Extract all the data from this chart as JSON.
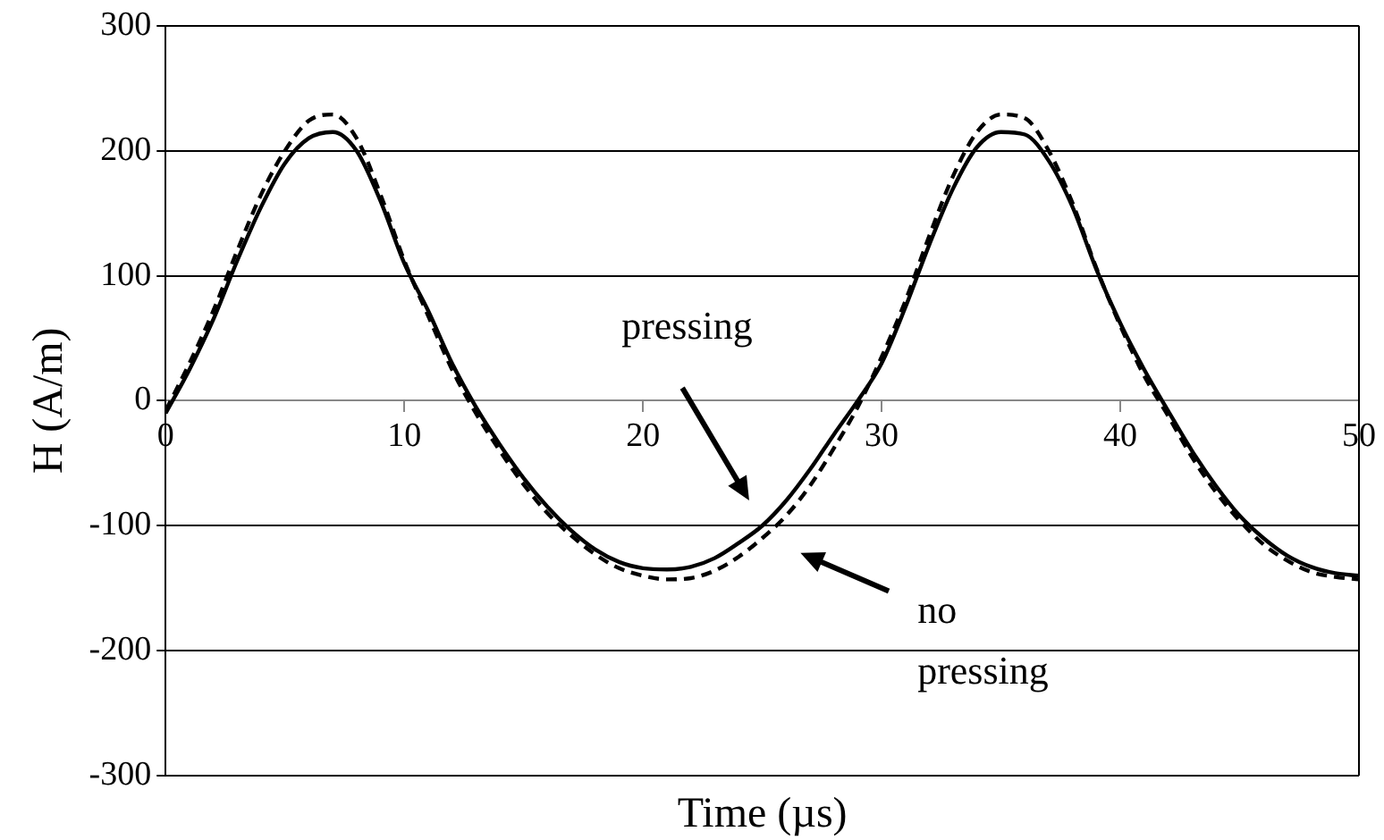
{
  "chart_data": {
    "type": "line",
    "xlabel": "Time (µs)",
    "ylabel": "H (A/m)",
    "x": [
      0,
      1,
      2,
      3,
      4,
      5,
      6,
      7,
      8,
      9,
      10,
      11,
      12,
      13,
      14,
      15,
      16,
      17,
      18,
      19,
      20,
      21,
      22,
      23,
      24,
      25,
      26,
      27,
      28,
      29,
      30,
      31,
      32,
      33,
      34,
      35,
      36,
      37,
      38,
      39,
      40,
      41,
      42,
      43,
      44,
      45,
      46,
      47,
      48,
      49,
      50
    ],
    "series": [
      {
        "color": "#000000",
        "line_style": "solid",
        "values": [
          -10,
          25,
          65,
          112,
          155,
          190,
          210,
          215,
          200,
          160,
          110,
          72,
          30,
          -5,
          -35,
          -62,
          -85,
          -104,
          -119,
          -129,
          -134,
          -135,
          -133,
          -126,
          -114,
          -100,
          -80,
          -55,
          -27,
          0,
          30,
          75,
          125,
          170,
          203,
          215,
          213,
          192,
          155,
          105,
          62,
          25,
          -8,
          -40,
          -68,
          -92,
          -110,
          -124,
          -133,
          -138,
          -140
        ]
      },
      {
        "color": "#000000",
        "line_style": "dashed",
        "values": [
          -8,
          30,
          72,
          120,
          165,
          200,
          224,
          229,
          210,
          165,
          112,
          68,
          25,
          -10,
          -40,
          -67,
          -90,
          -108,
          -123,
          -134,
          -140,
          -143,
          -142,
          -136,
          -125,
          -110,
          -92,
          -68,
          -38,
          -5,
          35,
          80,
          132,
          180,
          215,
          229,
          226,
          200,
          158,
          106,
          60,
          20,
          -12,
          -45,
          -73,
          -96,
          -115,
          -128,
          -137,
          -141,
          -143
        ]
      }
    ],
    "xlim": [
      0,
      50
    ],
    "xticks": [
      0,
      10,
      20,
      30,
      40,
      50
    ],
    "ylim": [
      -300,
      300
    ],
    "yticks": [
      -300,
      -200,
      -100,
      0,
      100,
      200,
      300
    ],
    "grid": "y",
    "legend": false,
    "marker": "none",
    "annotations": [
      "pressing",
      "no pressing"
    ]
  }
}
